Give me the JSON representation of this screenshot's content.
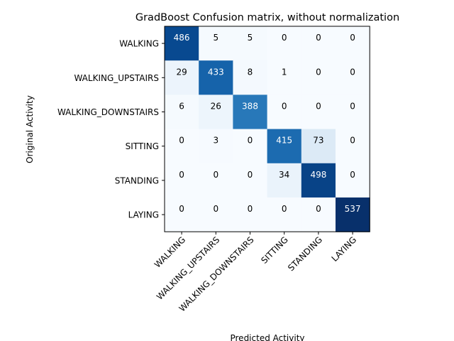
{
  "chart_data": {
    "type": "heatmap",
    "title": "GradBoost Confusion matrix, without normalization",
    "xlabel": "Predicted Activity",
    "ylabel": "Original Activity",
    "row_labels": [
      "WALKING",
      "WALKING_UPSTAIRS",
      "WALKING_DOWNSTAIRS",
      "SITTING",
      "STANDING",
      "LAYING"
    ],
    "col_labels": [
      "WALKING",
      "WALKING_UPSTAIRS",
      "WALKING_DOWNSTAIRS",
      "SITTING",
      "STANDING",
      "LAYING"
    ],
    "values": [
      [
        486,
        5,
        5,
        0,
        0,
        0
      ],
      [
        29,
        433,
        8,
        1,
        0,
        0
      ],
      [
        6,
        26,
        388,
        0,
        0,
        0
      ],
      [
        0,
        3,
        0,
        415,
        73,
        0
      ],
      [
        0,
        0,
        0,
        34,
        498,
        0
      ],
      [
        0,
        0,
        0,
        0,
        0,
        537
      ]
    ],
    "colormap": "Blues",
    "vmin": 0,
    "vmax": 537,
    "grid": false,
    "colorbar": false
  }
}
